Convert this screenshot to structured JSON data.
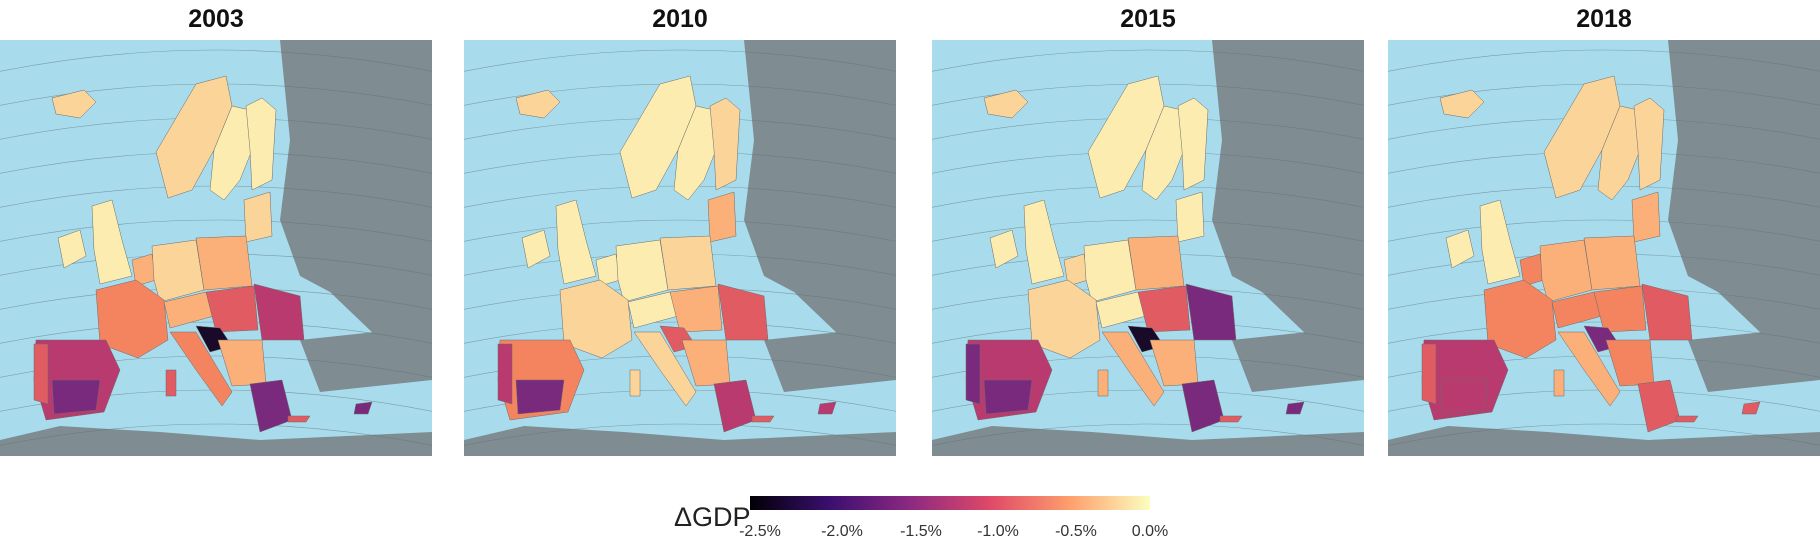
{
  "panels": [
    {
      "year": "2003"
    },
    {
      "year": "2010"
    },
    {
      "year": "2015"
    },
    {
      "year": "2018"
    }
  ],
  "legend": {
    "title": "ΔGDP",
    "ticks": [
      "-2.5%",
      "-2.0%",
      "-1.5%",
      "-1.0%",
      "-0.5%",
      "0.0%"
    ],
    "colors": [
      "#000004",
      "#3b0f70",
      "#8c2981",
      "#de4968",
      "#fe9f6d",
      "#fcfdbf"
    ]
  },
  "map_colors": {
    "ocean": "#a8dcec",
    "non_eu_land": "#7f8c92",
    "graticule": "#5f6f78",
    "border": "#6b6b6b"
  }
}
